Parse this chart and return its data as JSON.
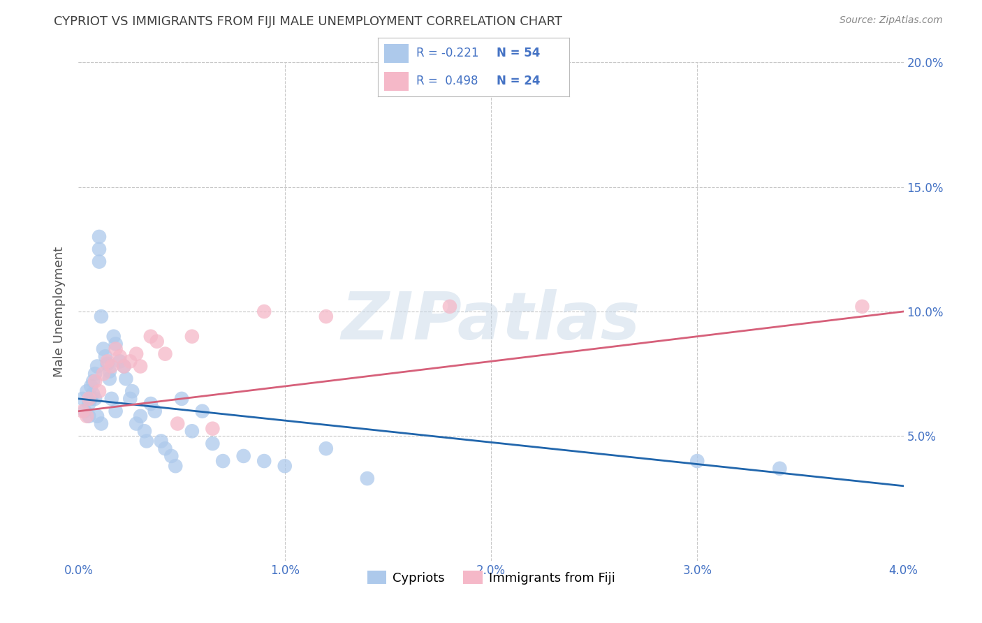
{
  "title": "CYPRIOT VS IMMIGRANTS FROM FIJI MALE UNEMPLOYMENT CORRELATION CHART",
  "source": "Source: ZipAtlas.com",
  "ylabel": "Male Unemployment",
  "watermark": "ZIPatlas",
  "xlim": [
    0.0,
    0.04
  ],
  "ylim": [
    0.0,
    0.2
  ],
  "xticks": [
    0.0,
    0.01,
    0.02,
    0.03,
    0.04
  ],
  "xtick_labels": [
    "0.0%",
    "1.0%",
    "2.0%",
    "3.0%",
    "4.0%"
  ],
  "yticks": [
    0.0,
    0.05,
    0.1,
    0.15,
    0.2
  ],
  "ytick_labels": [
    "",
    "5.0%",
    "10.0%",
    "15.0%",
    "20.0%"
  ],
  "legend_R_cypriot": "R = -0.221",
  "legend_N_cypriot": "N = 54",
  "legend_R_fiji": "R =  0.498",
  "legend_N_fiji": "N = 24",
  "legend_label_cypriot": "Cypriots",
  "legend_label_fiji": "Immigrants from Fiji",
  "cypriot_color": "#adc9eb",
  "fiji_color": "#f5b8c8",
  "trendline_cypriot_color": "#2166ac",
  "trendline_fiji_color": "#d6607a",
  "cypriot_x": [
    0.0002,
    0.0003,
    0.0004,
    0.0005,
    0.0005,
    0.0006,
    0.0006,
    0.0007,
    0.0007,
    0.0008,
    0.0008,
    0.0009,
    0.0009,
    0.001,
    0.001,
    0.001,
    0.0011,
    0.0011,
    0.0012,
    0.0013,
    0.0014,
    0.0015,
    0.0015,
    0.0016,
    0.0017,
    0.0018,
    0.0018,
    0.002,
    0.0022,
    0.0023,
    0.0025,
    0.0026,
    0.0028,
    0.003,
    0.0032,
    0.0033,
    0.0035,
    0.0037,
    0.004,
    0.0042,
    0.0045,
    0.0047,
    0.005,
    0.0055,
    0.006,
    0.0065,
    0.007,
    0.008,
    0.009,
    0.01,
    0.012,
    0.014,
    0.03,
    0.034
  ],
  "cypriot_y": [
    0.065,
    0.06,
    0.068,
    0.063,
    0.058,
    0.07,
    0.065,
    0.072,
    0.067,
    0.075,
    0.065,
    0.078,
    0.058,
    0.13,
    0.125,
    0.12,
    0.098,
    0.055,
    0.085,
    0.082,
    0.079,
    0.076,
    0.073,
    0.065,
    0.09,
    0.087,
    0.06,
    0.08,
    0.078,
    0.073,
    0.065,
    0.068,
    0.055,
    0.058,
    0.052,
    0.048,
    0.063,
    0.06,
    0.048,
    0.045,
    0.042,
    0.038,
    0.065,
    0.052,
    0.06,
    0.047,
    0.04,
    0.042,
    0.04,
    0.038,
    0.045,
    0.033,
    0.04,
    0.037
  ],
  "fiji_x": [
    0.0002,
    0.0004,
    0.0005,
    0.0008,
    0.001,
    0.0012,
    0.0014,
    0.0016,
    0.0018,
    0.002,
    0.0022,
    0.0025,
    0.0028,
    0.003,
    0.0035,
    0.0038,
    0.0042,
    0.0048,
    0.0055,
    0.0065,
    0.009,
    0.012,
    0.018,
    0.038
  ],
  "fiji_y": [
    0.06,
    0.058,
    0.065,
    0.072,
    0.068,
    0.075,
    0.08,
    0.078,
    0.085,
    0.082,
    0.078,
    0.08,
    0.083,
    0.078,
    0.09,
    0.088,
    0.083,
    0.055,
    0.09,
    0.053,
    0.1,
    0.098,
    0.102,
    0.102
  ],
  "axis_color": "#4472c4",
  "grid_color": "#c8c8c8",
  "title_color": "#404040",
  "background_color": "#ffffff"
}
